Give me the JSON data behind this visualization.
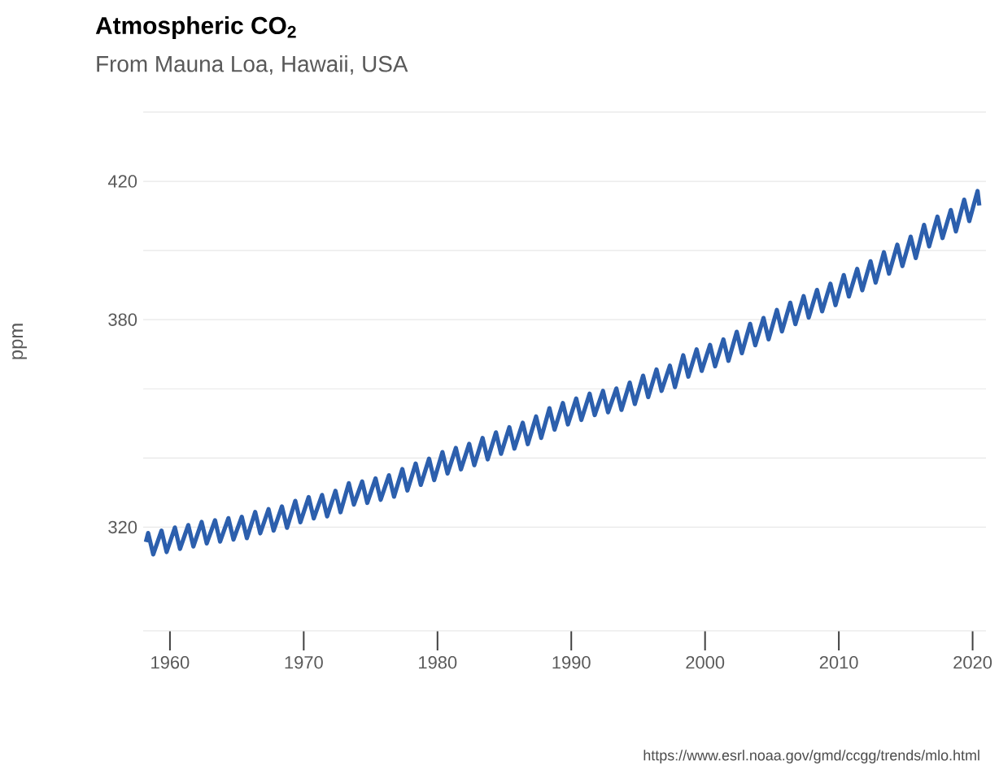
{
  "chart_data": {
    "type": "line",
    "title": "Atmospheric CO$_{2}$",
    "subtitle": "From Mauna Loa, Hawaii, USA",
    "ylabel": "ppm",
    "annotations": [
      "https://www.esrl.noaa.gov/gmd/ccgg/trends/mlo.html"
    ],
    "x": [
      1958.2,
      1958.37,
      1958.75,
      1959.37,
      1959.75,
      1960.37,
      1960.75,
      1961.37,
      1961.75,
      1962.37,
      1962.75,
      1963.37,
      1963.75,
      1964.37,
      1964.75,
      1965.37,
      1965.75,
      1966.37,
      1966.75,
      1967.37,
      1967.75,
      1968.37,
      1968.75,
      1969.37,
      1969.75,
      1970.37,
      1970.75,
      1971.37,
      1971.75,
      1972.37,
      1972.75,
      1973.37,
      1973.75,
      1974.37,
      1974.75,
      1975.37,
      1975.75,
      1976.37,
      1976.75,
      1977.37,
      1977.75,
      1978.37,
      1978.75,
      1979.37,
      1979.75,
      1980.37,
      1980.75,
      1981.37,
      1981.75,
      1982.37,
      1982.75,
      1983.37,
      1983.75,
      1984.37,
      1984.75,
      1985.37,
      1985.75,
      1986.37,
      1986.75,
      1987.37,
      1987.75,
      1988.37,
      1988.75,
      1989.37,
      1989.75,
      1990.37,
      1990.75,
      1991.37,
      1991.75,
      1992.37,
      1992.75,
      1993.37,
      1993.75,
      1994.37,
      1994.75,
      1995.37,
      1995.75,
      1996.37,
      1996.75,
      1997.37,
      1997.75,
      1998.37,
      1998.75,
      1999.37,
      1999.75,
      2000.37,
      2000.75,
      2001.37,
      2001.75,
      2002.37,
      2002.75,
      2003.37,
      2003.75,
      2004.37,
      2004.75,
      2005.37,
      2005.75,
      2006.37,
      2006.75,
      2007.37,
      2007.75,
      2008.37,
      2008.75,
      2009.37,
      2009.75,
      2010.37,
      2010.75,
      2011.37,
      2011.75,
      2012.37,
      2012.75,
      2013.37,
      2013.75,
      2014.37,
      2014.75,
      2015.37,
      2015.75,
      2016.37,
      2016.75,
      2017.37,
      2017.75,
      2018.37,
      2018.75,
      2019.37,
      2019.75,
      2020.37,
      2020.5
    ],
    "series": [
      {
        "color": "#2c5fad",
        "values": [
          315.7,
          318.3,
          312.1,
          319.0,
          312.8,
          319.9,
          313.7,
          320.6,
          314.4,
          321.5,
          315.3,
          322.0,
          315.8,
          322.6,
          316.4,
          323.0,
          316.8,
          324.4,
          318.2,
          325.2,
          319.0,
          326.0,
          319.8,
          327.6,
          321.4,
          328.7,
          322.5,
          329.3,
          323.1,
          330.5,
          324.3,
          332.7,
          326.5,
          333.2,
          327.0,
          334.1,
          327.9,
          335.0,
          328.8,
          336.8,
          330.6,
          338.4,
          332.2,
          339.8,
          333.6,
          341.7,
          335.5,
          342.9,
          336.7,
          344.1,
          337.9,
          345.8,
          339.6,
          347.4,
          341.2,
          348.9,
          342.7,
          350.2,
          344.0,
          352.0,
          345.8,
          354.4,
          348.2,
          355.9,
          349.7,
          357.2,
          351.0,
          358.6,
          352.4,
          359.4,
          353.2,
          360.1,
          353.9,
          361.8,
          355.6,
          363.8,
          357.6,
          365.6,
          359.4,
          366.7,
          360.5,
          369.7,
          363.5,
          371.4,
          365.2,
          372.7,
          366.5,
          374.3,
          368.1,
          376.5,
          370.3,
          378.8,
          372.6,
          380.5,
          374.3,
          382.8,
          376.6,
          384.9,
          378.7,
          386.8,
          380.6,
          388.6,
          382.4,
          390.4,
          384.2,
          392.9,
          386.7,
          394.7,
          388.5,
          396.9,
          390.7,
          399.5,
          393.3,
          401.7,
          395.5,
          404.0,
          397.8,
          407.4,
          401.2,
          409.8,
          403.6,
          411.7,
          405.5,
          414.7,
          408.5,
          417.2,
          413.0
        ]
      }
    ],
    "xlim": [
      1958,
      2021
    ],
    "ylim": [
      290,
      440
    ],
    "xticks": [
      1960,
      1970,
      1980,
      1990,
      2000,
      2010,
      2020
    ],
    "yticks": [
      {
        "value": 320,
        "label": "320"
      },
      {
        "value": 340,
        "label": null
      },
      {
        "value": 360,
        "label": null
      },
      {
        "value": 380,
        "label": "380"
      },
      {
        "value": 400,
        "label": null
      },
      {
        "value": 420,
        "label": "420"
      },
      {
        "value": 440,
        "label": null
      }
    ],
    "grid": "y",
    "marker": "none",
    "line_style": "solid"
  }
}
